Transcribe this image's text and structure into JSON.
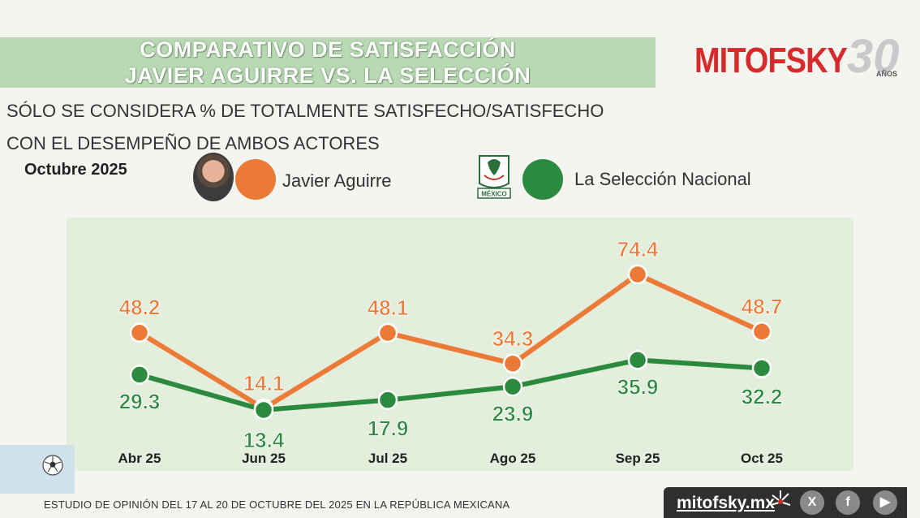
{
  "header": {
    "title_line1": "COMPARATIVO DE SATISFACCIÓN",
    "title_line2": "JAVIER AGUIRRE VS. LA SELECCIÓN",
    "logo_text": "MITOFSKY",
    "logo_number": "30",
    "logo_years": "AÑOS"
  },
  "subtitle": {
    "line1": "SÓLO SE CONSIDERA % DE TOTALMENTE SATISFECHO/SATISFECHO",
    "line2": "CON EL DESEMPEÑO DE AMBOS ACTORES"
  },
  "period": "Octubre 2025",
  "legend": {
    "aguirre": "Javier Aguirre",
    "seleccion": "La Selección Nacional",
    "crest_text": "MÉXICO"
  },
  "colors": {
    "aguirre": "#ec7a37",
    "seleccion": "#2b8a3e",
    "title_band": "#b9d9b4",
    "plot_bg": "#e4eedd"
  },
  "chart_data": {
    "type": "line",
    "title": "COMPARATIVO DE SATISFACCIÓN JAVIER AGUIRRE VS. LA SELECCIÓN",
    "categories": [
      "Abr 25",
      "Jun 25",
      "Jul 25",
      "Ago 25",
      "Sep 25",
      "Oct 25"
    ],
    "series": [
      {
        "name": "Javier Aguirre",
        "values": [
          48.2,
          14.1,
          48.1,
          34.3,
          74.4,
          48.7
        ],
        "labels": [
          "48.2",
          "14.1",
          "48.1",
          "34.3",
          "74.4",
          "48.7"
        ]
      },
      {
        "name": "La Selección Nacional",
        "values": [
          29.3,
          13.4,
          17.9,
          23.9,
          35.9,
          32.2
        ],
        "labels": [
          "29.3",
          "13.4",
          "17.9",
          "23.9",
          "35.9",
          "32.2"
        ]
      }
    ],
    "xlabel": "",
    "ylabel": "",
    "ylim": [
      0,
      100
    ],
    "grid": false,
    "legend": "top"
  },
  "footer": {
    "study": "ESTUDIO DE OPINIÓN DEL 17 AL 20 DE OCTUBRE DEL 2025 EN LA REPÚBLICA MEXICANA",
    "site": "mitofsky.mx",
    "social_x": "X",
    "social_facebook": "f",
    "social_youtube": "▶"
  },
  "icons": {
    "ball": "soccer-ball-icon",
    "crest": "mexico-crest-icon"
  }
}
